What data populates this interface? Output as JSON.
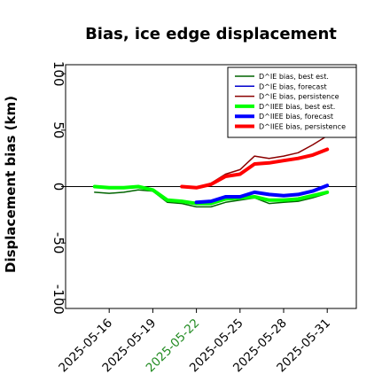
{
  "chart_data": {
    "type": "line",
    "title": "Bias, ice edge displacement",
    "xlabel": "",
    "ylabel": "Displacement bias (km)",
    "ylim": [
      -108,
      108
    ],
    "yticks": [
      -100,
      -50,
      0,
      50,
      100
    ],
    "xlim": [
      "2025-05-13",
      "2025-06-02"
    ],
    "xticks": [
      "2025-05-16",
      "2025-05-19",
      "2025-05-22",
      "2025-05-25",
      "2025-05-28",
      "2025-05-31"
    ],
    "xtick_colors": [
      "#000000",
      "#000000",
      "#228B22",
      "#000000",
      "#000000",
      "#000000"
    ],
    "zero_line": true,
    "legend_placement": "top-right",
    "series": [
      {
        "name": "D^IE bias, best est.",
        "color": "#006400",
        "style": "thin",
        "x": [
          "2025-05-15",
          "2025-05-16",
          "2025-05-17",
          "2025-05-18",
          "2025-05-19",
          "2025-05-20",
          "2025-05-21",
          "2025-05-22",
          "2025-05-23",
          "2025-05-24",
          "2025-05-25",
          "2025-05-26",
          "2025-05-27",
          "2025-05-28",
          "2025-05-29",
          "2025-05-30",
          "2025-05-31"
        ],
        "values": [
          -5,
          -6,
          -5,
          -3,
          -4,
          -14,
          -15,
          -18,
          -18,
          -14,
          -12,
          -10,
          -15,
          -14,
          -13,
          -10,
          -6
        ]
      },
      {
        "name": "D^IE bias, forecast",
        "color": "#0000cd",
        "style": "thin",
        "x": [
          "2025-05-22",
          "2025-05-23",
          "2025-05-24",
          "2025-05-25",
          "2025-05-26",
          "2025-05-27",
          "2025-05-28",
          "2025-05-29",
          "2025-05-30",
          "2025-05-31"
        ],
        "values": [
          -14,
          -14,
          -9,
          -9,
          -5,
          -7,
          -8,
          -7,
          -4,
          0
        ]
      },
      {
        "name": "D^IE bias, persistence",
        "color": "#8b0000",
        "style": "thin",
        "x": [
          "2025-05-21",
          "2025-05-22",
          "2025-05-23",
          "2025-05-24",
          "2025-05-25",
          "2025-05-26",
          "2025-05-27",
          "2025-05-28",
          "2025-05-29",
          "2025-05-30",
          "2025-05-31"
        ],
        "values": [
          0,
          -1,
          3,
          11,
          15,
          27,
          25,
          27,
          30,
          37,
          45
        ]
      },
      {
        "name": "D^IIEE bias, best est.",
        "color": "#00ff00",
        "style": "thick",
        "x": [
          "2025-05-15",
          "2025-05-16",
          "2025-05-17",
          "2025-05-18",
          "2025-05-19",
          "2025-05-20",
          "2025-05-21",
          "2025-05-22",
          "2025-05-23",
          "2025-05-24",
          "2025-05-25",
          "2025-05-26",
          "2025-05-27",
          "2025-05-28",
          "2025-05-29",
          "2025-05-30",
          "2025-05-31"
        ],
        "values": [
          0,
          -1,
          -1,
          0,
          -3,
          -12,
          -13,
          -15,
          -15,
          -11,
          -10,
          -9,
          -12,
          -12,
          -11,
          -8,
          -5
        ]
      },
      {
        "name": "D^IIEE bias, forecast",
        "color": "#0000ff",
        "style": "thick",
        "x": [
          "2025-05-22",
          "2025-05-23",
          "2025-05-24",
          "2025-05-25",
          "2025-05-26",
          "2025-05-27",
          "2025-05-28",
          "2025-05-29",
          "2025-05-30",
          "2025-05-31"
        ],
        "values": [
          -14,
          -13,
          -9,
          -9,
          -5,
          -7,
          -8,
          -7,
          -4,
          1
        ]
      },
      {
        "name": "D^IIEE bias, persistence",
        "color": "#ff0000",
        "style": "thick",
        "x": [
          "2025-05-21",
          "2025-05-22",
          "2025-05-23",
          "2025-05-24",
          "2025-05-25",
          "2025-05-26",
          "2025-05-27",
          "2025-05-28",
          "2025-05-29",
          "2025-05-30",
          "2025-05-31"
        ],
        "values": [
          0,
          -1,
          2,
          9,
          11,
          20,
          21,
          23,
          25,
          28,
          33
        ]
      }
    ]
  }
}
